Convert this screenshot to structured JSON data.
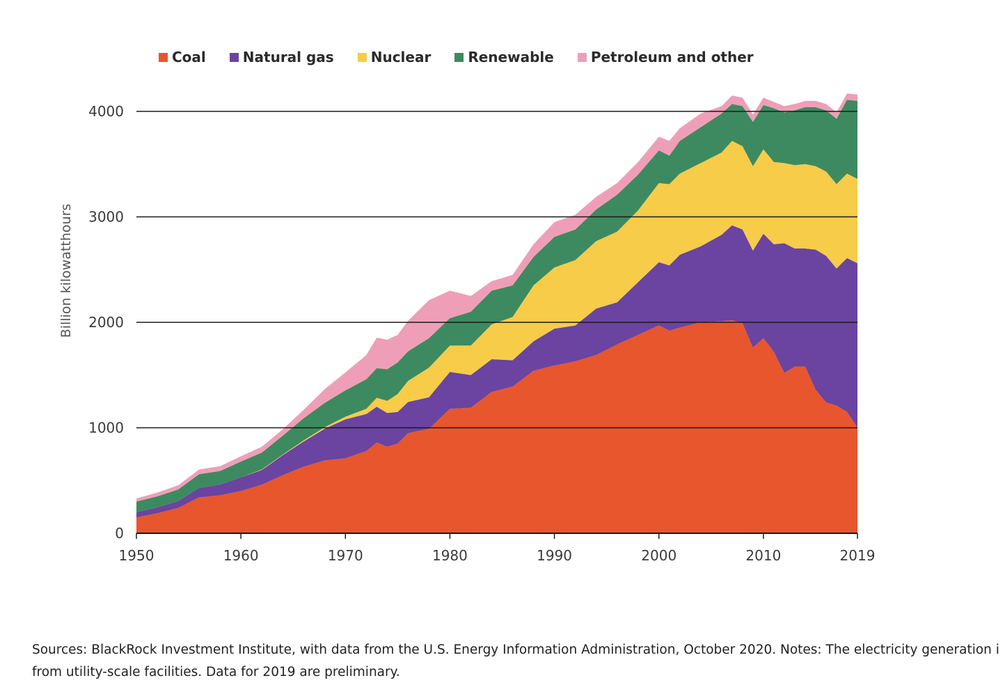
{
  "chart_data": {
    "type": "area",
    "stacked": true,
    "ylabel": "Billion kilowatthours",
    "xlabel": "",
    "xlim": [
      1950,
      2019
    ],
    "ylim": [
      0,
      4000
    ],
    "yticks": [
      0,
      1000,
      2000,
      3000,
      4000
    ],
    "xticks": [
      1950,
      1960,
      1970,
      1980,
      1990,
      2000,
      2010,
      2019
    ],
    "grid": "horizontal",
    "legend_position": "top",
    "x": [
      1950,
      1952,
      1954,
      1956,
      1958,
      1960,
      1962,
      1964,
      1966,
      1968,
      1970,
      1972,
      1973,
      1974,
      1975,
      1976,
      1978,
      1980,
      1982,
      1984,
      1986,
      1988,
      1990,
      1992,
      1994,
      1996,
      1998,
      2000,
      2001,
      2002,
      2004,
      2006,
      2007,
      2008,
      2009,
      2010,
      2011,
      2012,
      2013,
      2014,
      2015,
      2016,
      2017,
      2018,
      2019
    ],
    "series": [
      {
        "name": "Coal",
        "color": "#e8562d",
        "values": [
          150,
          190,
          240,
          340,
          360,
          400,
          460,
          550,
          630,
          690,
          710,
          780,
          860,
          820,
          850,
          950,
          990,
          1180,
          1190,
          1340,
          1390,
          1540,
          1590,
          1630,
          1690,
          1790,
          1880,
          1970,
          1920,
          1950,
          2000,
          2010,
          2020,
          1990,
          1760,
          1850,
          1720,
          1520,
          1580,
          1580,
          1360,
          1240,
          1210,
          1150,
          1000
        ]
      },
      {
        "name": "Natural gas",
        "color": "#6a44a0",
        "values": [
          50,
          55,
          65,
          90,
          100,
          130,
          140,
          190,
          240,
          300,
          370,
          350,
          340,
          320,
          300,
          295,
          300,
          350,
          310,
          310,
          250,
          280,
          350,
          340,
          440,
          400,
          500,
          600,
          620,
          690,
          720,
          820,
          900,
          890,
          920,
          990,
          1020,
          1230,
          1120,
          1120,
          1330,
          1390,
          1300,
          1460,
          1560
        ]
      },
      {
        "name": "Nuclear",
        "color": "#f6cc48",
        "values": [
          0,
          0,
          0,
          0,
          0,
          0,
          5,
          5,
          10,
          15,
          25,
          50,
          85,
          115,
          170,
          200,
          280,
          250,
          280,
          330,
          410,
          530,
          580,
          620,
          640,
          670,
          680,
          750,
          770,
          770,
          790,
          780,
          800,
          790,
          800,
          800,
          780,
          760,
          790,
          800,
          790,
          800,
          800,
          800,
          800
        ]
      },
      {
        "name": "Renewable",
        "color": "#3d8a60",
        "values": [
          100,
          105,
          110,
          130,
          130,
          150,
          160,
          180,
          210,
          230,
          250,
          280,
          280,
          300,
          300,
          280,
          280,
          260,
          320,
          320,
          300,
          270,
          290,
          290,
          300,
          350,
          340,
          310,
          270,
          310,
          340,
          370,
          350,
          380,
          420,
          420,
          510,
          480,
          520,
          540,
          560,
          580,
          620,
          700,
          740
        ]
      },
      {
        "name": "Petroleum and other",
        "color": "#ee9fb7",
        "values": [
          30,
          35,
          40,
          45,
          45,
          50,
          55,
          60,
          80,
          130,
          170,
          230,
          290,
          280,
          260,
          290,
          360,
          260,
          150,
          90,
          100,
          120,
          140,
          140,
          120,
          110,
          120,
          130,
          140,
          120,
          130,
          70,
          80,
          80,
          70,
          70,
          60,
          60,
          60,
          60,
          60,
          60,
          60,
          60,
          60
        ]
      }
    ]
  },
  "footnote": {
    "line1": "Sources: BlackRock Investment Institute, with data from the U.S. Energy Information Administration, October 2020. Notes: The electricity generation i",
    "line2": "from utility-scale facilities. Data for 2019 are preliminary."
  }
}
